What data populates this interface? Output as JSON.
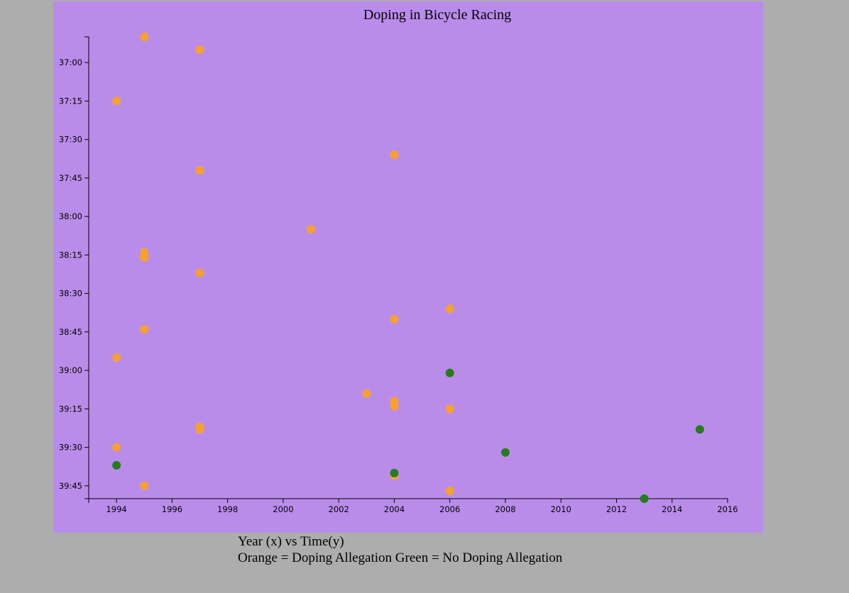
{
  "chart_data": {
    "type": "scatter",
    "title": "Doping in Bicycle Racing",
    "xlabel": "",
    "ylabel": "",
    "xlim": [
      1993,
      2016
    ],
    "ylim_seconds": [
      2210,
      2390
    ],
    "x_ticks": [
      1994,
      1996,
      1998,
      2000,
      2002,
      2004,
      2006,
      2008,
      2010,
      2012,
      2014,
      2016
    ],
    "y_ticks": [
      "37:00",
      "37:15",
      "37:30",
      "37:45",
      "38:00",
      "38:15",
      "38:30",
      "38:45",
      "39:00",
      "39:15",
      "39:30",
      "39:45"
    ],
    "y_tick_seconds": [
      2220,
      2235,
      2250,
      2265,
      2280,
      2295,
      2310,
      2325,
      2340,
      2355,
      2370,
      2385
    ],
    "y_inverted": true,
    "grid": false,
    "colors": {
      "doping": "#f7a12c",
      "clean": "#237d1a",
      "background": "#ba8cea"
    },
    "series": [
      {
        "name": "Doping Allegation",
        "points": [
          {
            "x": 1995,
            "y": "36:50"
          },
          {
            "x": 1997,
            "y": "36:55"
          },
          {
            "x": 1994,
            "y": "37:15"
          },
          {
            "x": 2004,
            "y": "37:36"
          },
          {
            "x": 1997,
            "y": "37:42"
          },
          {
            "x": 2001,
            "y": "38:05"
          },
          {
            "x": 1995,
            "y": "38:14"
          },
          {
            "x": 1995,
            "y": "38:16"
          },
          {
            "x": 1997,
            "y": "38:22"
          },
          {
            "x": 2006,
            "y": "38:36"
          },
          {
            "x": 2004,
            "y": "38:40"
          },
          {
            "x": 1995,
            "y": "38:44"
          },
          {
            "x": 1994,
            "y": "38:55"
          },
          {
            "x": 2003,
            "y": "39:09"
          },
          {
            "x": 2004,
            "y": "39:12"
          },
          {
            "x": 2004,
            "y": "39:14"
          },
          {
            "x": 2006,
            "y": "39:15"
          },
          {
            "x": 1997,
            "y": "39:22"
          },
          {
            "x": 1997,
            "y": "39:23"
          },
          {
            "x": 1994,
            "y": "39:30"
          },
          {
            "x": 2004,
            "y": "39:41"
          },
          {
            "x": 1995,
            "y": "39:45"
          },
          {
            "x": 2006,
            "y": "39:47"
          }
        ]
      },
      {
        "name": "No Doping Allegation",
        "points": [
          {
            "x": 2006,
            "y": "39:01"
          },
          {
            "x": 2015,
            "y": "39:23"
          },
          {
            "x": 2008,
            "y": "39:32"
          },
          {
            "x": 1994,
            "y": "39:37"
          },
          {
            "x": 2004,
            "y": "39:40"
          },
          {
            "x": 2013,
            "y": "39:50"
          }
        ]
      }
    ]
  },
  "caption": {
    "line1": "Year (x) vs Time(y)",
    "line2": "Orange = Doping Allegation Green = No Doping Allegation"
  }
}
